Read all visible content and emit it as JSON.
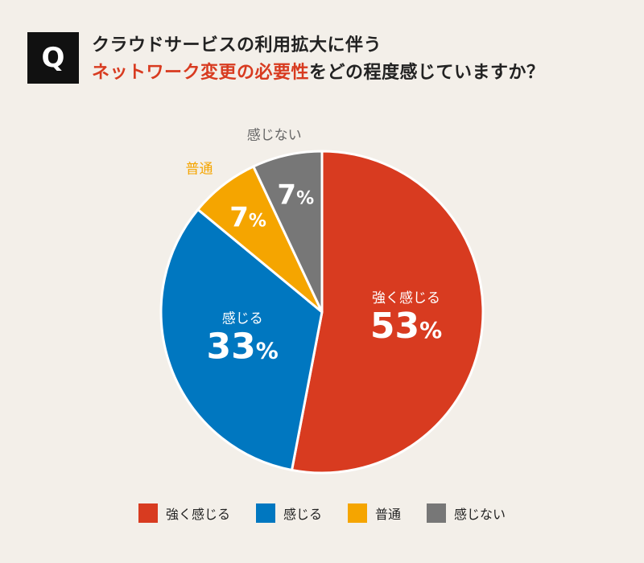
{
  "question": {
    "badge": "Q",
    "line1": "クラウドサービスの利用拡大に伴う",
    "line2_highlight": "ネットワーク変更の必要性",
    "line2_rest": "をどの程度感じていますか？"
  },
  "colors": {
    "highlight": "#d83b20",
    "background": "#f3efe9"
  },
  "chart_data": {
    "type": "pie",
    "categories": [
      "強く感じる",
      "感じる",
      "普通",
      "感じない"
    ],
    "values": [
      53,
      33,
      7,
      7
    ],
    "value_suffix": "%",
    "colors": [
      "#d83b20",
      "#0077c0",
      "#f5a500",
      "#777777"
    ],
    "legend_position": "bottom"
  }
}
